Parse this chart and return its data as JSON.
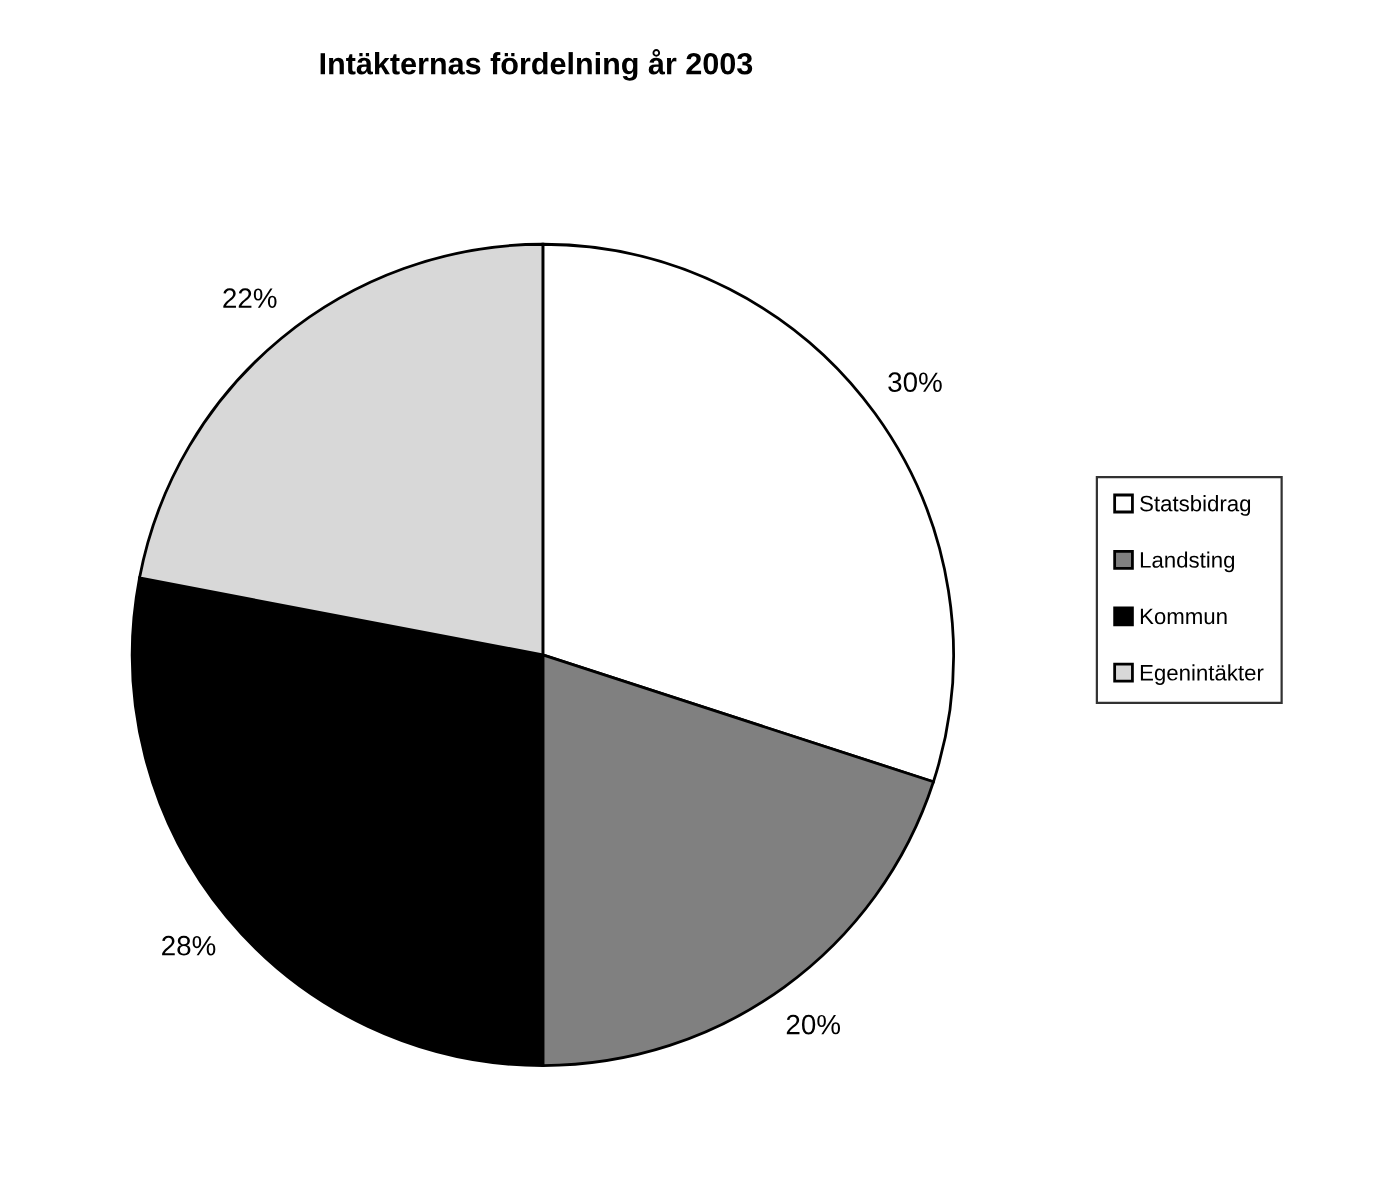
{
  "chart_data": {
    "type": "pie",
    "title": "Intäkternas fördelning år 2003",
    "categories": [
      "Statsbidrag",
      "Landsting",
      "Kommun",
      "Egenintäkter"
    ],
    "values": [
      30,
      20,
      28,
      22
    ],
    "colors": [
      "#ffffff",
      "#808080",
      "#000000",
      "#d8d8d8"
    ],
    "value_labels": [
      "30%",
      "20%",
      "28%",
      "22%"
    ],
    "legend": "right"
  }
}
